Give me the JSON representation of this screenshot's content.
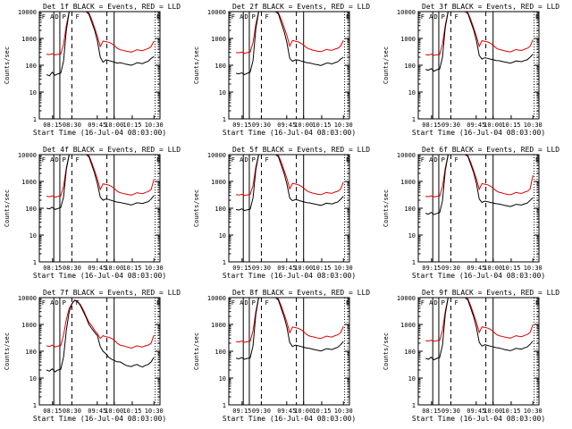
{
  "figure": {
    "width_label": "",
    "colors": {
      "events": "#000000",
      "lld": "#e00000",
      "axes": "#000000"
    }
  },
  "chart_data": [
    {
      "type": "line",
      "title": "Det 1f  BLACK = Events, RED = LLD",
      "xlabel": "Start Time (16-Jul-04 08:03:00)",
      "ylabel": "Counts/sec",
      "yscale": "log",
      "ylim": [
        1,
        10000
      ],
      "yticks": [
        "1",
        "10",
        "100",
        "1000",
        "10000"
      ],
      "xticks": [
        "08:15",
        "08:30",
        "09:45",
        "10:00",
        "10:15",
        "10:30"
      ],
      "marker_glyphs": [
        "F",
        "A",
        "D",
        "P",
        "F",
        "E"
      ],
      "series": [
        {
          "name": "Events",
          "color": "#000000"
        },
        {
          "name": "LLD",
          "color": "#e00000"
        }
      ],
      "events": [
        45,
        40,
        55,
        42,
        48,
        50,
        140,
        2000,
        10000,
        10000,
        10000,
        10000,
        10000,
        10000,
        10000,
        8000,
        4000,
        2000,
        800,
        200,
        130,
        160,
        150,
        140,
        130,
        120,
        125,
        118,
        110,
        105,
        100,
        110,
        125,
        120,
        115,
        130,
        140,
        180,
        210
      ],
      "lld": [
        260,
        250,
        270,
        245,
        255,
        260,
        600,
        3000,
        10000,
        10000,
        10000,
        10000,
        10000,
        10000,
        10000,
        9000,
        5000,
        2500,
        1200,
        500,
        800,
        760,
        720,
        650,
        540,
        430,
        380,
        360,
        340,
        320,
        310,
        340,
        380,
        360,
        350,
        390,
        420,
        500,
        800
      ]
    },
    {
      "type": "line",
      "title": "Det 2f  BLACK = Events, RED = LLD",
      "xlabel": "Start Time (16-Jul-04 08:03:00)",
      "ylabel": "Counts/sec",
      "yscale": "log",
      "ylim": [
        1,
        10000
      ],
      "yticks": [
        "1",
        "10",
        "100",
        "1000",
        "10000"
      ],
      "xticks": [
        "09:15",
        "09:30",
        "09:45",
        "10:00",
        "10:15",
        "10:30"
      ],
      "marker_glyphs": [
        "F",
        "A",
        "D",
        "P",
        "F",
        "E"
      ],
      "series": [
        {
          "name": "Events",
          "color": "#000000"
        },
        {
          "name": "LLD",
          "color": "#e00000"
        }
      ],
      "events": [
        50,
        48,
        52,
        45,
        50,
        55,
        150,
        2200,
        10000,
        10000,
        10000,
        10000,
        10000,
        10000,
        10000,
        8200,
        3800,
        1800,
        700,
        180,
        140,
        160,
        155,
        145,
        135,
        125,
        122,
        115,
        108,
        104,
        98,
        108,
        120,
        118,
        112,
        125,
        135,
        170,
        200
      ],
      "lld": [
        300,
        290,
        310,
        280,
        295,
        310,
        700,
        3300,
        10000,
        10000,
        10000,
        10000,
        10000,
        10000,
        10000,
        9000,
        5200,
        2600,
        1300,
        520,
        840,
        790,
        740,
        660,
        560,
        450,
        400,
        370,
        350,
        330,
        320,
        350,
        390,
        370,
        360,
        400,
        430,
        520,
        850
      ]
    },
    {
      "type": "line",
      "title": "Det 3f  BLACK = Events, RED = LLD",
      "xlabel": "Start Time (16-Jul-04 08:03:00)",
      "ylabel": "Counts/sec",
      "yscale": "log",
      "ylim": [
        1,
        10000
      ],
      "yticks": [
        "1",
        "10",
        "100",
        "1000",
        "10000"
      ],
      "xticks": [
        "08:15",
        "09:30",
        "09:45",
        "10:00",
        "10:15",
        "10:30"
      ],
      "marker_glyphs": [
        "F",
        "A",
        "D",
        "P",
        "F",
        "E"
      ],
      "series": [
        {
          "name": "Events",
          "color": "#000000"
        },
        {
          "name": "LLD",
          "color": "#e00000"
        }
      ],
      "events": [
        70,
        65,
        75,
        60,
        68,
        72,
        200,
        2600,
        10000,
        10000,
        10000,
        10000,
        10000,
        10000,
        10000,
        8500,
        4200,
        2100,
        850,
        230,
        170,
        190,
        180,
        170,
        160,
        150,
        148,
        140,
        132,
        126,
        120,
        130,
        145,
        140,
        136,
        150,
        160,
        200,
        260
      ],
      "lld": [
        250,
        240,
        260,
        235,
        245,
        250,
        620,
        3100,
        10000,
        10000,
        10000,
        10000,
        10000,
        10000,
        10000,
        9200,
        5100,
        2500,
        1250,
        510,
        820,
        780,
        740,
        660,
        550,
        440,
        390,
        370,
        345,
        325,
        315,
        345,
        385,
        365,
        355,
        395,
        425,
        510,
        900
      ]
    },
    {
      "type": "line",
      "title": "Det 4f  BLACK = Events, RED = LLD",
      "xlabel": "Start Time (16-Jul-04 08:03:00)",
      "ylabel": "Counts/sec",
      "yscale": "log",
      "ylim": [
        1,
        10000
      ],
      "yticks": [
        "1",
        "10",
        "100",
        "1000",
        "10000"
      ],
      "xticks": [
        "08:15",
        "08:30",
        "09:45",
        "10:00",
        "10:15",
        "10:30"
      ],
      "marker_glyphs": [
        "F",
        "A",
        "D",
        "P",
        "F",
        "E"
      ],
      "series": [
        {
          "name": "Events",
          "color": "#000000"
        },
        {
          "name": "LLD",
          "color": "#e00000"
        }
      ],
      "events": [
        100,
        95,
        110,
        90,
        98,
        105,
        260,
        2800,
        10000,
        10000,
        10000,
        10000,
        10000,
        10000,
        10000,
        8300,
        4100,
        2000,
        820,
        260,
        200,
        220,
        210,
        195,
        180,
        170,
        165,
        155,
        148,
        140,
        132,
        145,
        160,
        155,
        150,
        165,
        175,
        220,
        300
      ],
      "lld": [
        280,
        270,
        290,
        260,
        275,
        285,
        650,
        3200,
        10000,
        10000,
        10000,
        10000,
        10000,
        10000,
        10000,
        9100,
        5000,
        2450,
        1230,
        500,
        810,
        770,
        730,
        650,
        540,
        430,
        380,
        360,
        340,
        320,
        310,
        340,
        380,
        360,
        350,
        390,
        420,
        500,
        1200
      ]
    },
    {
      "type": "line",
      "title": "Det 5f  BLACK = Events, RED = LLD",
      "xlabel": "Start Time (16-Jul-04 08:03:00)",
      "ylabel": "Counts/sec",
      "yscale": "log",
      "ylim": [
        1,
        10000
      ],
      "yticks": [
        "1",
        "10",
        "100",
        "1000",
        "10000"
      ],
      "xticks": [
        "09:15",
        "09:30",
        "09:45",
        "10:00",
        "10:15",
        "10:30"
      ],
      "marker_glyphs": [
        "F",
        "A",
        "D",
        "P",
        "F",
        "E"
      ],
      "series": [
        {
          "name": "Events",
          "color": "#000000"
        },
        {
          "name": "LLD",
          "color": "#e00000"
        }
      ],
      "events": [
        90,
        85,
        95,
        82,
        88,
        92,
        240,
        2700,
        10000,
        10000,
        10000,
        10000,
        10000,
        10000,
        10000,
        8400,
        4000,
        1950,
        800,
        240,
        190,
        210,
        200,
        185,
        172,
        162,
        158,
        150,
        142,
        135,
        128,
        140,
        155,
        150,
        145,
        160,
        170,
        215,
        280
      ],
      "lld": [
        320,
        310,
        330,
        300,
        315,
        325,
        700,
        3400,
        10000,
        10000,
        10000,
        10000,
        10000,
        10000,
        10000,
        9300,
        5300,
        2600,
        1300,
        530,
        850,
        800,
        750,
        670,
        560,
        450,
        400,
        370,
        350,
        330,
        320,
        350,
        390,
        370,
        360,
        400,
        430,
        520,
        950
      ]
    },
    {
      "type": "line",
      "title": "Det 6f  BLACK = Events, RED = LLD",
      "xlabel": "Start Time (16-Jul-04 08:03:00)",
      "ylabel": "Counts/sec",
      "yscale": "log",
      "ylim": [
        1,
        10000
      ],
      "yticks": [
        "1",
        "10",
        "100",
        "1000",
        "10000"
      ],
      "xticks": [
        "09:15",
        "09:30",
        "09:45",
        "10:00",
        "10:15",
        "10:30"
      ],
      "marker_glyphs": [
        "F",
        "A",
        "D",
        "P",
        "F",
        "E"
      ],
      "series": [
        {
          "name": "Events",
          "color": "#000000"
        },
        {
          "name": "LLD",
          "color": "#e00000"
        }
      ],
      "events": [
        65,
        60,
        70,
        58,
        64,
        68,
        190,
        2500,
        10000,
        10000,
        10000,
        10000,
        10000,
        10000,
        10000,
        8600,
        4300,
        2150,
        870,
        220,
        165,
        185,
        175,
        165,
        155,
        148,
        143,
        136,
        128,
        122,
        116,
        126,
        140,
        136,
        132,
        146,
        156,
        195,
        250
      ],
      "lld": [
        280,
        270,
        290,
        265,
        275,
        285,
        640,
        3150,
        10000,
        10000,
        10000,
        10000,
        10000,
        10000,
        10000,
        9150,
        5150,
        2550,
        1270,
        510,
        830,
        790,
        745,
        665,
        555,
        445,
        395,
        372,
        348,
        328,
        318,
        348,
        388,
        368,
        358,
        398,
        428,
        515,
        1700
      ]
    },
    {
      "type": "line",
      "title": "Det 7f  BLACK = Events, RED = LLD",
      "xlabel": "Start Time (16-Jul-04 08:03:00)",
      "ylabel": "Counts/sec",
      "yscale": "log",
      "ylim": [
        1,
        10000
      ],
      "yticks": [
        "1",
        "10",
        "100",
        "1000",
        "10000"
      ],
      "xticks": [
        "08:15",
        "08:30",
        "09:45",
        "10:00",
        "10:15",
        "10:30"
      ],
      "marker_glyphs": [
        "F",
        "A",
        "D",
        "P",
        "F",
        "E"
      ],
      "series": [
        {
          "name": "Events",
          "color": "#000000"
        },
        {
          "name": "LLD",
          "color": "#e00000"
        }
      ],
      "events": [
        20,
        18,
        22,
        17,
        20,
        21,
        60,
        600,
        3000,
        6000,
        8000,
        7000,
        5000,
        3000,
        1800,
        1000,
        700,
        500,
        380,
        150,
        100,
        80,
        60,
        50,
        45,
        40,
        40,
        35,
        30,
        28,
        27,
        30,
        32,
        28,
        26,
        30,
        32,
        40,
        60
      ],
      "lld": [
        160,
        150,
        170,
        145,
        155,
        160,
        400,
        1500,
        4000,
        6000,
        8000,
        7000,
        5500,
        3500,
        2000,
        1200,
        900,
        600,
        450,
        300,
        380,
        350,
        330,
        300,
        260,
        200,
        170,
        160,
        150,
        140,
        130,
        145,
        160,
        150,
        145,
        160,
        170,
        200,
        400
      ]
    },
    {
      "type": "line",
      "title": "Det 8f  BLACK = Events, RED = LLD",
      "xlabel": "Start Time (16-Jul-04 08:03:00)",
      "ylabel": "Counts/sec",
      "yscale": "log",
      "ylim": [
        1,
        10000
      ],
      "yticks": [
        "1",
        "10",
        "100",
        "1000",
        "10000"
      ],
      "xticks": [
        "09:15",
        "09:30",
        "09:45",
        "10:00",
        "10:15",
        "10:30"
      ],
      "marker_glyphs": [
        "F",
        "A",
        "D",
        "P",
        "F",
        "E"
      ],
      "series": [
        {
          "name": "Events",
          "color": "#000000"
        },
        {
          "name": "LLD",
          "color": "#e00000"
        }
      ],
      "events": [
        55,
        52,
        58,
        50,
        54,
        56,
        160,
        2300,
        10000,
        10000,
        10000,
        10000,
        10000,
        10000,
        10000,
        8100,
        3900,
        1900,
        780,
        210,
        150,
        170,
        160,
        150,
        140,
        132,
        128,
        120,
        113,
        108,
        102,
        112,
        125,
        120,
        116,
        130,
        140,
        175,
        230
      ],
      "lld": [
        230,
        220,
        240,
        215,
        225,
        235,
        580,
        3000,
        10000,
        10000,
        10000,
        10000,
        10000,
        10000,
        10000,
        8900,
        4900,
        2400,
        1200,
        490,
        800,
        760,
        720,
        640,
        530,
        420,
        370,
        350,
        330,
        310,
        300,
        330,
        370,
        350,
        340,
        380,
        410,
        490,
        850
      ]
    },
    {
      "type": "line",
      "title": "Det 9f  BLACK = Events, RED = LLD",
      "xlabel": "Start Time (16-Jul-04 08:03:00)",
      "ylabel": "Counts/sec",
      "yscale": "log",
      "ylim": [
        1,
        10000
      ],
      "yticks": [
        "1",
        "10",
        "100",
        "1000",
        "10000"
      ],
      "xticks": [
        "08:15",
        "09:30",
        "09:45",
        "10:00",
        "10:15",
        "10:30"
      ],
      "marker_glyphs": [
        "F",
        "A",
        "D",
        "P",
        "F",
        "E"
      ],
      "series": [
        {
          "name": "Events",
          "color": "#000000"
        },
        {
          "name": "LLD",
          "color": "#e00000"
        }
      ],
      "events": [
        55,
        50,
        60,
        48,
        54,
        58,
        170,
        2400,
        10000,
        10000,
        10000,
        10000,
        10000,
        10000,
        10000,
        8200,
        4000,
        1950,
        790,
        215,
        155,
        175,
        165,
        155,
        145,
        136,
        132,
        124,
        116,
        110,
        105,
        115,
        128,
        124,
        120,
        134,
        144,
        180,
        240
      ],
      "lld": [
        250,
        240,
        260,
        235,
        245,
        255,
        610,
        3050,
        10000,
        10000,
        10000,
        10000,
        10000,
        10000,
        10000,
        9000,
        5000,
        2450,
        1220,
        500,
        810,
        770,
        730,
        650,
        540,
        430,
        380,
        360,
        340,
        320,
        310,
        340,
        380,
        360,
        350,
        390,
        420,
        500,
        1000
      ]
    }
  ]
}
